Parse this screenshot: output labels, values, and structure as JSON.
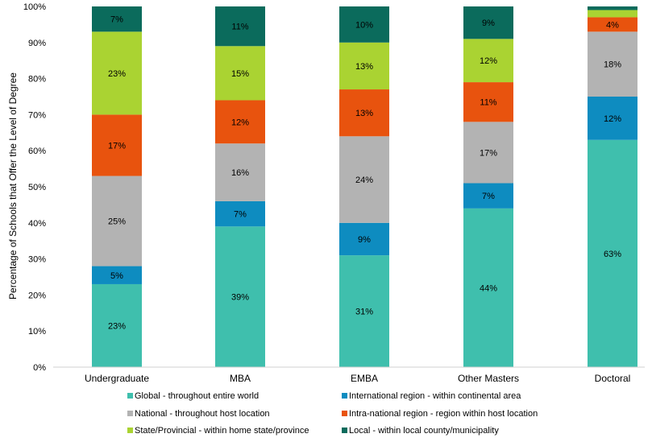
{
  "chart_data": {
    "type": "bar",
    "stacked": true,
    "ylabel": "Percentage of Schools that Offer the Level of Degree",
    "xlabel": "",
    "ylim": [
      0,
      100
    ],
    "y_ticks": [
      "0%",
      "10%",
      "20%",
      "30%",
      "40%",
      "50%",
      "60%",
      "70%",
      "80%",
      "90%",
      "100%"
    ],
    "grid": false,
    "legend_position": "bottom",
    "categories": [
      "Undergraduate",
      "MBA",
      "EMBA",
      "Other Masters",
      "Doctoral"
    ],
    "series": [
      {
        "name": "Global - throughout entire world",
        "color": "#3fbfad",
        "values": [
          23,
          39,
          31,
          44,
          63
        ],
        "labels": [
          "23%",
          "39%",
          "31%",
          "44%",
          "63%"
        ]
      },
      {
        "name": "International region - within continental area",
        "color": "#0e8cc0",
        "values": [
          5,
          7,
          9,
          7,
          12
        ],
        "labels": [
          "5%",
          "7%",
          "9%",
          "7%",
          "12%"
        ]
      },
      {
        "name": "National - throughout host location",
        "color": "#b3b3b3",
        "values": [
          25,
          16,
          24,
          17,
          18
        ],
        "labels": [
          "25%",
          "16%",
          "24%",
          "17%",
          "18%"
        ]
      },
      {
        "name": "Intra-national region - region within host location",
        "color": "#e8530e",
        "values": [
          17,
          12,
          13,
          11,
          4
        ],
        "labels": [
          "17%",
          "12%",
          "13%",
          "11%",
          "4%"
        ]
      },
      {
        "name": "State/Provincial - within home state/province",
        "color": "#aad332",
        "values": [
          23,
          15,
          13,
          12,
          2
        ],
        "labels": [
          "23%",
          "15%",
          "13%",
          "12%",
          ""
        ]
      },
      {
        "name": "Local - within local county/municipality",
        "color": "#0b6b5c",
        "values": [
          7,
          11,
          10,
          9,
          1
        ],
        "labels": [
          "7%",
          "11%",
          "10%",
          "9%",
          ""
        ]
      }
    ]
  }
}
